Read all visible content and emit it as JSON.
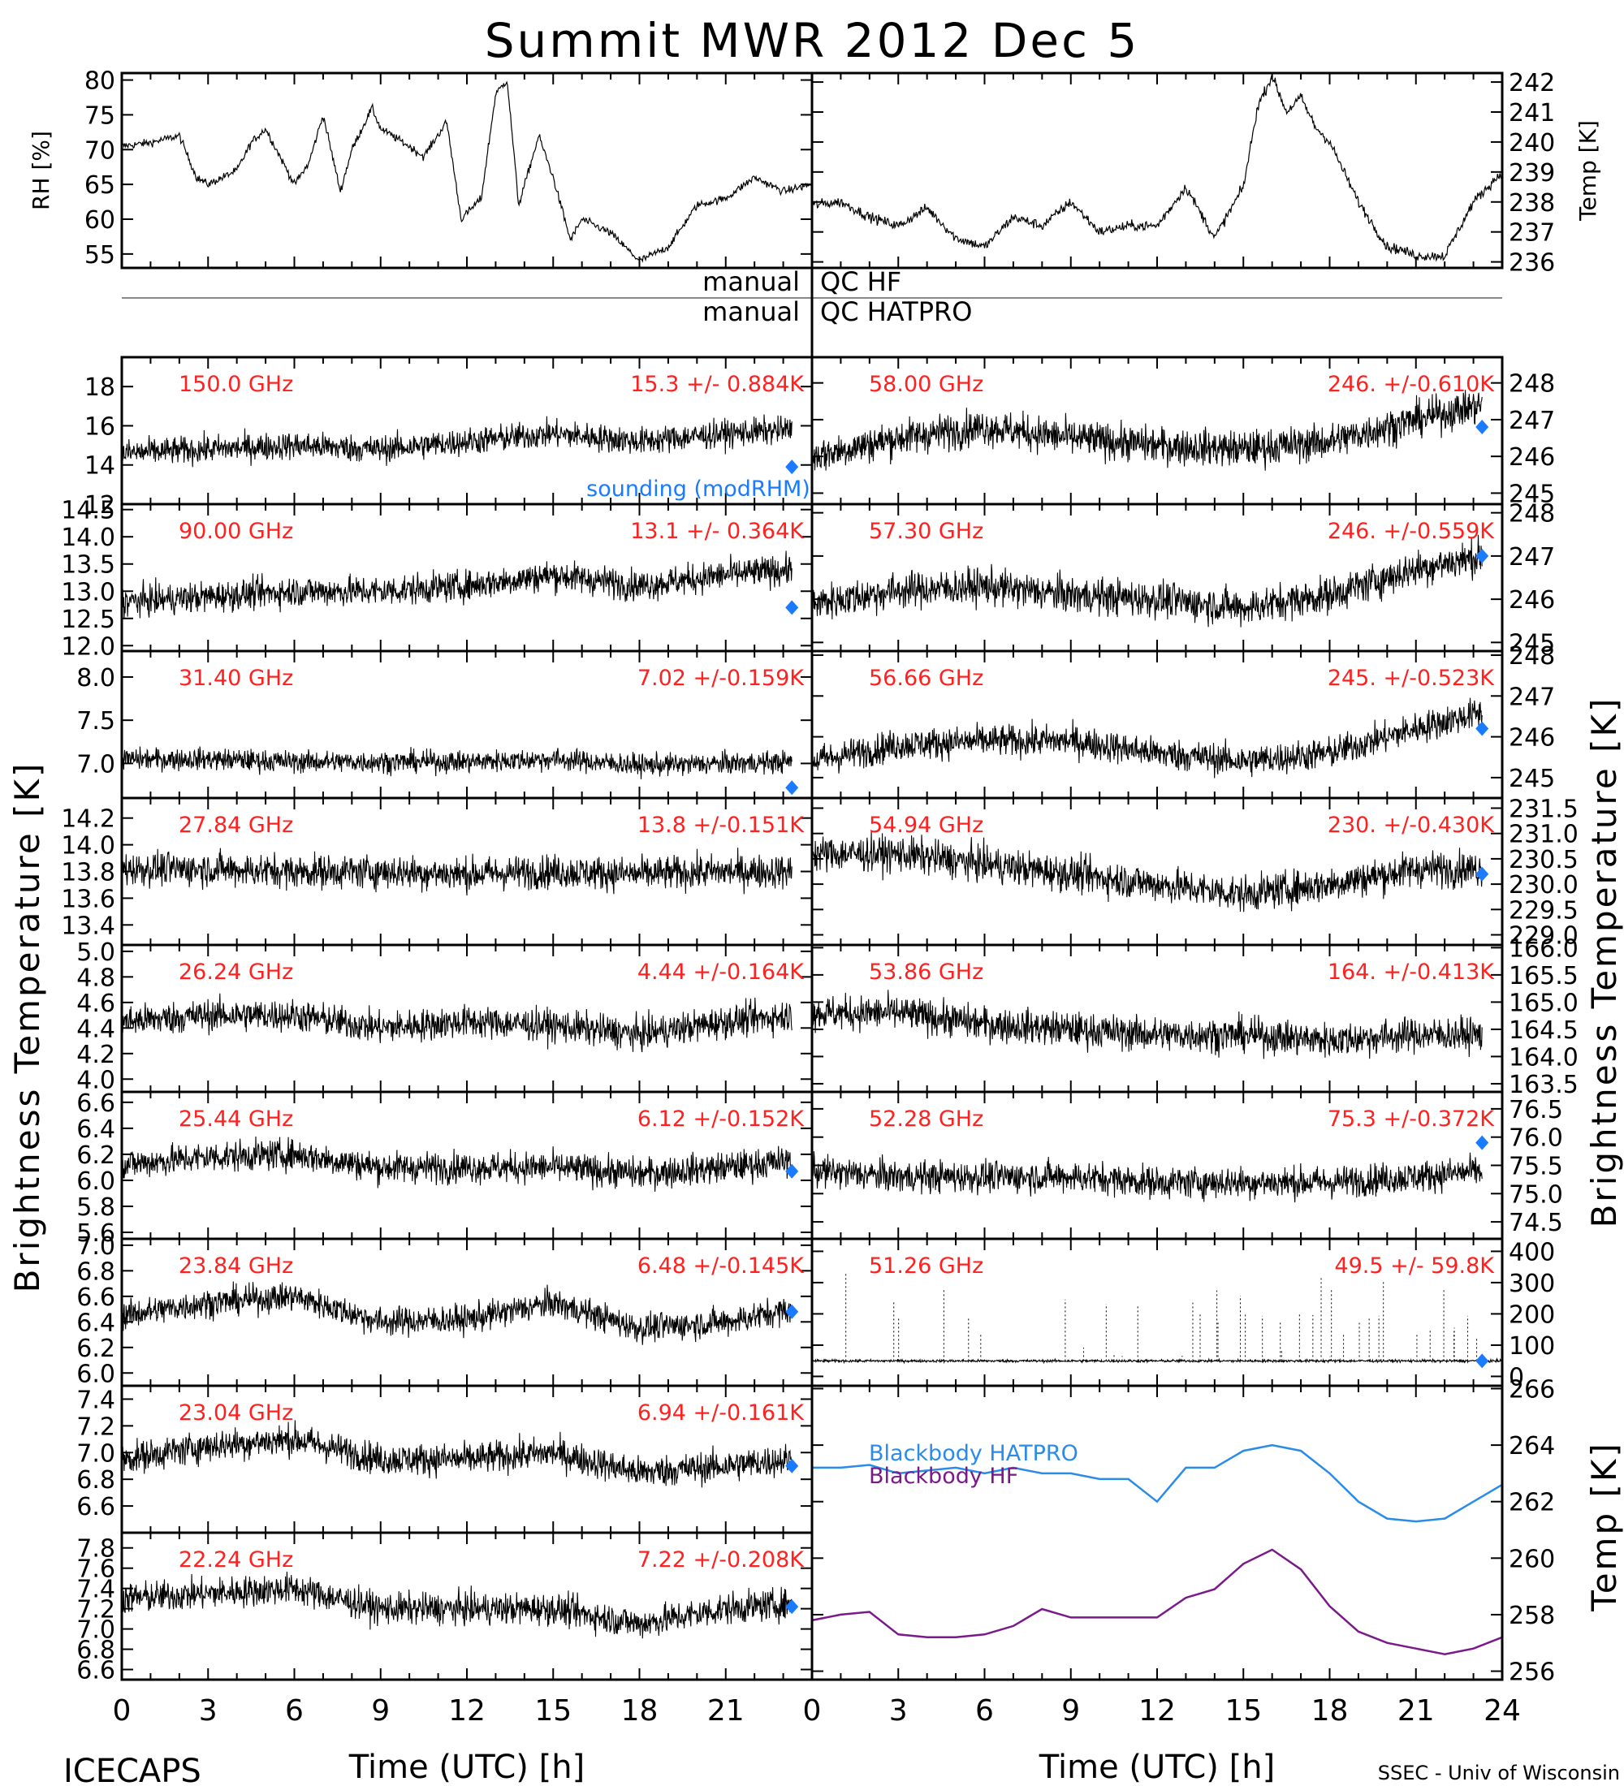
{
  "title": "Summit MWR 2012 Dec  5",
  "footer": {
    "left": "ICECAPS",
    "right": "SSEC - Univ of Wisconsin"
  },
  "colors": {
    "trace": "#000000",
    "label": "#ff2020",
    "marker": "#1a7bff",
    "hatpro": "#2a8be8",
    "hf": "#7a1a8a"
  },
  "qc": {
    "left1": "manual",
    "right1": "QC HF",
    "left2": "manual",
    "right2": "QC HATPRO"
  },
  "legend": {
    "sounding": "sounding (modRHM)",
    "bb_hatpro": "Blackbody HATPRO",
    "bb_hf": "Blackbody HF"
  },
  "axis_labels": {
    "left_bt": "Brightness Temperature [K]",
    "right_bt": "Brightness Temperature [K]",
    "rh": "RH [%]",
    "temp_top": "Temp [K]",
    "temp_bottom": "Temp [K]",
    "xlabel_left": "Time (UTC) [h]",
    "xlabel_right": "Time (UTC) [h]"
  },
  "x_ticks_left": [
    "0",
    "3",
    "6",
    "9",
    "12",
    "15",
    "18",
    "21"
  ],
  "x_ticks_right": [
    "0",
    "3",
    "6",
    "9",
    "12",
    "15",
    "18",
    "21",
    "24"
  ],
  "chart_data": [
    {
      "type": "line",
      "id": "rh",
      "ylabel": "RH [%]",
      "xlim": [
        0,
        24
      ],
      "ylim": [
        53,
        81
      ],
      "yticks": [
        "55",
        "60",
        "65",
        "70",
        "75",
        "80"
      ],
      "x": [
        0,
        1,
        2,
        2.6,
        3,
        4,
        4.5,
        5,
        6,
        6.5,
        7,
        7.6,
        8,
        8.7,
        9,
        9.8,
        10.5,
        11.3,
        11.8,
        12.5,
        13,
        13.4,
        13.8,
        14.5,
        15,
        15.6,
        16,
        17,
        18,
        19,
        20,
        21,
        22,
        23,
        24
      ],
      "y": [
        70.5,
        71,
        72,
        66,
        65,
        67,
        71,
        73,
        65,
        68,
        75,
        64,
        70,
        76,
        73,
        71,
        69,
        74,
        60,
        63,
        78,
        80,
        62,
        72,
        66,
        57,
        60,
        58,
        54,
        56,
        62,
        63,
        66,
        64,
        65
      ]
    },
    {
      "type": "line",
      "id": "temp_top",
      "ylabel": "Temp [K]",
      "xlim": [
        0,
        24
      ],
      "ylim": [
        235.8,
        242.3
      ],
      "yticks": [
        "236",
        "237",
        "238",
        "239",
        "240",
        "241",
        "242"
      ],
      "x": [
        0,
        1,
        2,
        3,
        4,
        5,
        6,
        7,
        8,
        9,
        10,
        11,
        12,
        13,
        14,
        15,
        15.5,
        16,
        16.5,
        17,
        17.5,
        18,
        19,
        20,
        20.5,
        21,
        22,
        23,
        24
      ],
      "y": [
        237.9,
        238,
        237.5,
        237.2,
        237.8,
        236.8,
        236.5,
        237.5,
        237.2,
        238,
        237,
        237.2,
        237.2,
        238.5,
        236.8,
        238.5,
        241.2,
        242.2,
        241,
        241.5,
        240.5,
        240,
        238,
        236.5,
        236.4,
        236.2,
        236.2,
        238,
        239
      ]
    },
    {
      "type": "line",
      "id": "ch150",
      "label": "150.0 GHz",
      "stat": "15.3 +/- 0.884K",
      "ylim": [
        12,
        19.5
      ],
      "yticks": [
        "12",
        "14",
        "16",
        "18"
      ],
      "x": [
        0,
        3,
        6,
        9,
        12,
        15,
        18,
        21,
        23.3
      ],
      "y": [
        14.6,
        14.8,
        15,
        14.8,
        15.2,
        15.6,
        15.2,
        15.6,
        15.8
      ],
      "noise": 1.0,
      "sounding": 13.9,
      "sounding_label": "sounding (modRHM)"
    },
    {
      "type": "line",
      "id": "ch9000",
      "label": "90.00 GHz",
      "stat": "13.1 +/- 0.364K",
      "ylim": [
        11.9,
        14.6
      ],
      "yticks": [
        "12.0",
        "12.5",
        "13.0",
        "13.5",
        "14.0",
        "14.5"
      ],
      "x": [
        0,
        3,
        6,
        9,
        12,
        15,
        18,
        21,
        23.3
      ],
      "y": [
        12.8,
        12.9,
        13,
        13,
        13.1,
        13.3,
        13.1,
        13.3,
        13.4
      ],
      "noise": 0.4,
      "sounding": 12.7
    },
    {
      "type": "line",
      "id": "ch3140",
      "label": "31.40 GHz",
      "stat": "7.02 +/-0.159K",
      "ylim": [
        6.6,
        8.3
      ],
      "yticks": [
        "7.0",
        "7.5",
        "8.0"
      ],
      "x": [
        0,
        3,
        6,
        9,
        12,
        15,
        18,
        21,
        23.3
      ],
      "y": [
        7.05,
        7.05,
        7.02,
        7.02,
        7.02,
        7.05,
        6.98,
        7.0,
        7.02
      ],
      "noise": 0.18,
      "sounding": 6.72
    },
    {
      "type": "line",
      "id": "ch2784",
      "label": "27.84 GHz",
      "stat": "13.8 +/-0.151K",
      "ylim": [
        13.25,
        14.35
      ],
      "yticks": [
        "13.4",
        "13.6",
        "13.8",
        "14.0",
        "14.2"
      ],
      "x": [
        0,
        3,
        6,
        9,
        12,
        15,
        18,
        21,
        23.3
      ],
      "y": [
        13.82,
        13.82,
        13.8,
        13.8,
        13.78,
        13.8,
        13.78,
        13.8,
        13.8
      ],
      "noise": 0.18,
      "sounding": null
    },
    {
      "type": "line",
      "id": "ch2624",
      "label": "26.24 GHz",
      "stat": "4.44 +/-0.164K",
      "ylim": [
        3.9,
        5.05
      ],
      "yticks": [
        "4.0",
        "4.2",
        "4.4",
        "4.6",
        "4.8",
        "5.0"
      ],
      "x": [
        0,
        3,
        6,
        9,
        12,
        15,
        18,
        21,
        23.3
      ],
      "y": [
        4.45,
        4.5,
        4.5,
        4.4,
        4.45,
        4.42,
        4.35,
        4.45,
        4.5
      ],
      "noise": 0.18,
      "sounding": null
    },
    {
      "type": "line",
      "id": "ch2544",
      "label": "25.44 GHz",
      "stat": "6.12 +/-0.152K",
      "ylim": [
        5.55,
        6.68
      ],
      "yticks": [
        "5.6",
        "5.8",
        "6.0",
        "6.2",
        "6.4",
        "6.6"
      ],
      "x": [
        0,
        3,
        6,
        9,
        12,
        15,
        18,
        21,
        23.3
      ],
      "y": [
        6.12,
        6.18,
        6.2,
        6.1,
        6.1,
        6.1,
        6.05,
        6.1,
        6.15
      ],
      "noise": 0.17,
      "sounding": 6.07
    },
    {
      "type": "line",
      "id": "ch2384",
      "label": "23.84 GHz",
      "stat": "6.48 +/-0.145K",
      "ylim": [
        5.9,
        7.05
      ],
      "yticks": [
        "6.0",
        "6.2",
        "6.4",
        "6.6",
        "6.8",
        "7.0"
      ],
      "x": [
        0,
        3,
        6,
        9,
        12,
        15,
        18,
        21,
        23.3
      ],
      "y": [
        6.45,
        6.55,
        6.6,
        6.4,
        6.42,
        6.55,
        6.35,
        6.4,
        6.5
      ],
      "noise": 0.16,
      "sounding": 6.48
    },
    {
      "type": "line",
      "id": "ch2304",
      "label": "23.04 GHz",
      "stat": "6.94 +/-0.161K",
      "ylim": [
        6.4,
        7.5
      ],
      "yticks": [
        "6.6",
        "6.8",
        "7.0",
        "7.2",
        "7.4"
      ],
      "x": [
        0,
        3,
        6,
        9,
        12,
        15,
        18,
        21,
        23.3
      ],
      "y": [
        6.95,
        7.05,
        7.1,
        6.95,
        6.95,
        7.0,
        6.85,
        6.9,
        6.95
      ],
      "noise": 0.17,
      "sounding": 6.9
    },
    {
      "type": "line",
      "id": "ch2224",
      "label": "22.24 GHz",
      "stat": "7.22 +/-0.208K",
      "ylim": [
        6.5,
        7.95
      ],
      "yticks": [
        "6.6",
        "6.8",
        "7.0",
        "7.2",
        "7.4",
        "7.6",
        "7.8"
      ],
      "x": [
        0,
        3,
        6,
        9,
        12,
        15,
        18,
        21,
        23.3
      ],
      "y": [
        7.3,
        7.35,
        7.4,
        7.2,
        7.2,
        7.2,
        7.05,
        7.2,
        7.25
      ],
      "noise": 0.22,
      "sounding": 7.22
    },
    {
      "type": "line",
      "id": "ch5800",
      "label": "58.00 GHz",
      "stat": "246. +/-0.610K",
      "ylim": [
        244.7,
        248.7
      ],
      "yticks": [
        "245",
        "246",
        "247",
        "248"
      ],
      "x": [
        0,
        3,
        6,
        9,
        12,
        15,
        18,
        21,
        23.3
      ],
      "y": [
        246,
        246.5,
        246.8,
        246.5,
        246.3,
        246.2,
        246.4,
        247,
        247.4
      ],
      "noise": 0.7,
      "sounding": 246.8
    },
    {
      "type": "line",
      "id": "ch5730",
      "label": "57.30 GHz",
      "stat": "246. +/-0.559K",
      "ylim": [
        244.8,
        248.2
      ],
      "yticks": [
        "245",
        "246",
        "247",
        "248"
      ],
      "x": [
        0,
        3,
        6,
        9,
        12,
        15,
        18,
        21,
        23.3
      ],
      "y": [
        245.9,
        246.2,
        246.3,
        246.1,
        246,
        245.8,
        246.1,
        246.7,
        247
      ],
      "noise": 0.6,
      "sounding": 247
    },
    {
      "type": "line",
      "id": "ch5666",
      "label": "56.66 GHz",
      "stat": "245. +/-0.523K",
      "ylim": [
        244.5,
        248.1
      ],
      "yticks": [
        "245",
        "246",
        "247",
        "248"
      ],
      "x": [
        0,
        3,
        6,
        9,
        12,
        15,
        18,
        21,
        23.3
      ],
      "y": [
        245.4,
        245.8,
        245.9,
        245.9,
        245.6,
        245.4,
        245.6,
        246.2,
        246.6
      ],
      "noise": 0.55,
      "sounding": 246.2
    },
    {
      "type": "line",
      "id": "ch5494",
      "label": "54.94 GHz",
      "stat": "230. +/-0.430K",
      "ylim": [
        228.8,
        231.7
      ],
      "yticks": [
        "229.0",
        "229.5",
        "230.0",
        "230.5",
        "231.0",
        "231.5"
      ],
      "x": [
        0,
        3,
        6,
        9,
        12,
        15,
        18,
        21,
        23.3
      ],
      "y": [
        230.6,
        230.6,
        230.4,
        230.2,
        230,
        229.8,
        230,
        230.3,
        230.3
      ],
      "noise": 0.5,
      "sounding": 230.2
    },
    {
      "type": "line",
      "id": "ch5386",
      "label": "53.86 GHz",
      "stat": "164. +/-0.413K",
      "ylim": [
        163.35,
        166.05
      ],
      "yticks": [
        "163.5",
        "164.0",
        "164.5",
        "165.0",
        "165.5",
        "166.0"
      ],
      "x": [
        0,
        3,
        6,
        9,
        12,
        15,
        18,
        21,
        23.3
      ],
      "y": [
        164.8,
        164.8,
        164.6,
        164.5,
        164.4,
        164.4,
        164.3,
        164.4,
        164.4
      ],
      "noise": 0.45,
      "sounding": null
    },
    {
      "type": "line",
      "id": "ch5228",
      "label": "52.28 GHz",
      "stat": "75.3 +/-0.372K",
      "ylim": [
        74.2,
        76.8
      ],
      "yticks": [
        "74.5",
        "75.0",
        "75.5",
        "76.0",
        "76.5"
      ],
      "x": [
        0,
        3,
        6,
        9,
        12,
        15,
        18,
        21,
        23.3
      ],
      "y": [
        75.4,
        75.3,
        75.3,
        75.3,
        75.2,
        75.2,
        75.2,
        75.3,
        75.4
      ],
      "noise": 0.4,
      "sounding": 75.9
    },
    {
      "type": "line",
      "id": "ch5126",
      "label": "51.26 GHz",
      "stat": "49.5 +/- 59.8K",
      "ylim": [
        -30,
        440
      ],
      "yticks": [
        "0",
        "100",
        "200",
        "300",
        "400"
      ],
      "x": [
        0,
        24
      ],
      "y": [
        49.5,
        49.5
      ],
      "noise": 6,
      "spikes": true,
      "sounding": 49.5
    },
    {
      "type": "line",
      "id": "blackbody",
      "ylabel": "Temp [K]",
      "ylim": [
        255.7,
        266.1
      ],
      "yticks": [
        "256",
        "258",
        "260",
        "262",
        "264",
        "266"
      ],
      "series": [
        {
          "name": "Blackbody HATPRO",
          "color": "#2a8be8",
          "x": [
            0,
            1,
            2,
            3,
            4,
            5,
            6,
            7,
            8,
            9,
            10,
            11,
            12,
            13,
            14,
            15,
            16,
            17,
            18,
            19,
            20,
            21,
            22,
            23,
            24
          ],
          "y": [
            263.2,
            263.2,
            263.3,
            263,
            263.1,
            263.2,
            263,
            263.2,
            263,
            263,
            262.8,
            262.8,
            262,
            263.2,
            263.2,
            263.8,
            264,
            263.8,
            263,
            262,
            261.4,
            261.3,
            261.4,
            262,
            262.6
          ]
        },
        {
          "name": "Blackbody HF",
          "color": "#7a1a8a",
          "x": [
            0,
            1,
            2,
            3,
            4,
            5,
            6,
            7,
            8,
            9,
            10,
            11,
            12,
            13,
            14,
            15,
            16,
            17,
            18,
            19,
            20,
            21,
            22,
            23,
            24
          ],
          "y": [
            257.8,
            258,
            258.1,
            257.3,
            257.2,
            257.2,
            257.3,
            257.6,
            258.2,
            257.9,
            257.9,
            257.9,
            257.9,
            258.6,
            258.9,
            259.8,
            260.3,
            259.6,
            258.3,
            257.4,
            257,
            256.8,
            256.6,
            256.8,
            257.2
          ]
        }
      ]
    }
  ]
}
